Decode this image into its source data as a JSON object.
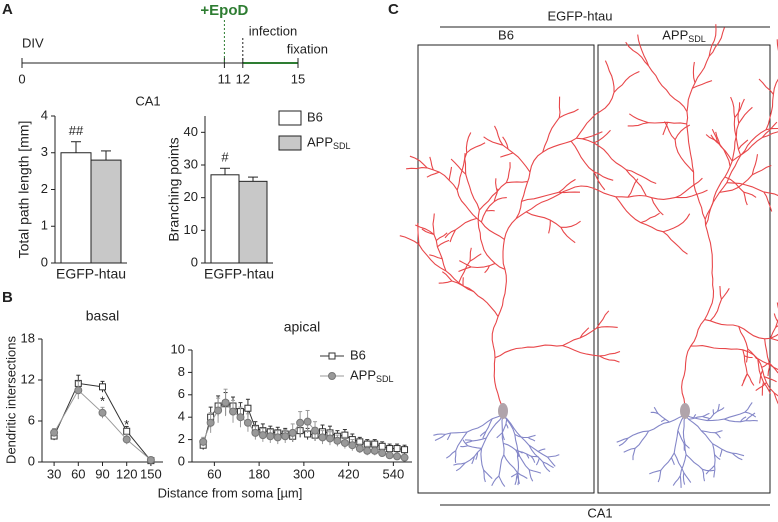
{
  "panel_labels": [
    "A",
    "B",
    "C"
  ],
  "timeline": {
    "label": "DIV",
    "treatment": "+EpoD",
    "infection": "infection",
    "fixation": "fixation",
    "xlim": [
      0,
      15
    ],
    "ticks": [
      0,
      11,
      12,
      15
    ],
    "treatment_day": 11,
    "infection_day": 12,
    "fixation_day": 15
  },
  "shared": {
    "bar_title": "CA1",
    "x_label": "Distance from soma [µm]",
    "y_label": "Dendritic intersections"
  },
  "images": {
    "title": "EGFP-htau",
    "panels": [
      {
        "name": "B6"
      },
      {
        "name": "APP",
        "subscript": "SDL"
      }
    ],
    "region": "CA1"
  },
  "chart_data": [
    {
      "type": "bar",
      "y_label": "Total path length [mm]",
      "categories": [
        "EGFP-htau"
      ],
      "ylim": [
        0,
        4
      ],
      "yticks": [
        0,
        1,
        2,
        3,
        4
      ],
      "series": [
        {
          "color": "#ffffff",
          "values": [
            3.0
          ],
          "errors": [
            0.3
          ]
        },
        {
          "color": "#c8c8c8",
          "values": [
            2.8
          ],
          "errors": [
            0.25
          ]
        }
      ],
      "annotations": [
        {
          "text": "##",
          "series": 0
        }
      ]
    },
    {
      "type": "bar",
      "y_label": "Branching points",
      "categories": [
        "EGFP-htau"
      ],
      "ylim": [
        0,
        45
      ],
      "yticks": [
        0,
        10,
        20,
        30,
        40
      ],
      "legend": true,
      "series": [
        {
          "name": "B6",
          "color": "#ffffff",
          "values": [
            27
          ],
          "errors": [
            2
          ]
        },
        {
          "name": "APP",
          "subscript": "SDL",
          "color": "#c8c8c8",
          "values": [
            25
          ],
          "errors": [
            1.3
          ]
        }
      ],
      "annotations": [
        {
          "text": "#",
          "series": 0
        }
      ]
    },
    {
      "type": "line",
      "title": "basal",
      "x": [
        30,
        60,
        90,
        120,
        150
      ],
      "xlim": [
        15,
        165
      ],
      "xticks": [
        30,
        60,
        90,
        120,
        150
      ],
      "ylim": [
        0,
        18
      ],
      "yticks": [
        0,
        6,
        12,
        18
      ],
      "series": [
        {
          "color": "#333333",
          "marker": "square",
          "values": [
            3.8,
            11.5,
            11,
            4.5,
            0.2
          ],
          "errors": [
            0.6,
            1.2,
            0.8,
            0.7,
            0.2
          ]
        },
        {
          "color": "#999999",
          "marker": "circle",
          "values": [
            4.3,
            10.5,
            7.2,
            3.3,
            0.3
          ],
          "errors": [
            0.6,
            1.3,
            0.8,
            0.7,
            0.2
          ]
        }
      ],
      "annotations": [
        {
          "text": "*",
          "x": 90,
          "y": 8.8
        },
        {
          "text": "*",
          "x": 120,
          "y": 5.3
        }
      ]
    },
    {
      "type": "line",
      "title": "apical",
      "x": [
        30,
        50,
        70,
        90,
        110,
        130,
        150,
        170,
        190,
        210,
        230,
        250,
        270,
        290,
        310,
        330,
        350,
        370,
        390,
        410,
        430,
        450,
        470,
        490,
        510,
        530,
        550,
        570
      ],
      "xlim": [
        0,
        590
      ],
      "xticks": [
        60,
        180,
        300,
        420,
        540
      ],
      "ylim": [
        0,
        10
      ],
      "yticks": [
        0,
        2,
        4,
        6,
        8,
        10
      ],
      "legend": true,
      "series": [
        {
          "name": "B6",
          "color": "#333333",
          "marker": "square",
          "values": [
            1.5,
            4,
            5,
            5.2,
            5,
            4.5,
            4.8,
            3,
            2.8,
            2.7,
            2.6,
            2.5,
            2.3,
            2.8,
            2.5,
            2.4,
            2.7,
            2.6,
            2.3,
            2.4,
            2,
            1.8,
            1.6,
            1.6,
            1.4,
            1.2,
            1.2,
            1.1
          ],
          "errors": [
            0.4,
            0.9,
            0.9,
            1,
            0.8,
            0.8,
            0.8,
            0.6,
            0.6,
            0.5,
            0.5,
            0.5,
            0.5,
            0.6,
            0.5,
            0.5,
            0.6,
            0.6,
            0.5,
            0.5,
            0.5,
            0.4,
            0.4,
            0.4,
            0.4,
            0.4,
            0.4,
            0.4
          ]
        },
        {
          "name": "APP",
          "subscript": "SDL",
          "color": "#999999",
          "marker": "circle",
          "values": [
            1.8,
            3.5,
            4.6,
            5.3,
            4.5,
            4,
            3.5,
            2.6,
            2.4,
            2.3,
            2.2,
            2.3,
            2.6,
            3.5,
            3.6,
            2.8,
            2.2,
            2.1,
            1.9,
            1.7,
            1.5,
            1.2,
            1,
            1,
            0.8,
            0.6,
            0.5,
            0.4
          ],
          "errors": [
            0.4,
            0.9,
            1.1,
            1.2,
            1,
            0.9,
            0.8,
            0.6,
            0.6,
            0.6,
            0.6,
            0.6,
            0.8,
            1,
            1,
            0.8,
            0.6,
            0.6,
            0.5,
            0.5,
            0.5,
            0.4,
            0.4,
            0.4,
            0.3,
            0.3,
            0.3,
            0.3
          ]
        }
      ]
    }
  ]
}
